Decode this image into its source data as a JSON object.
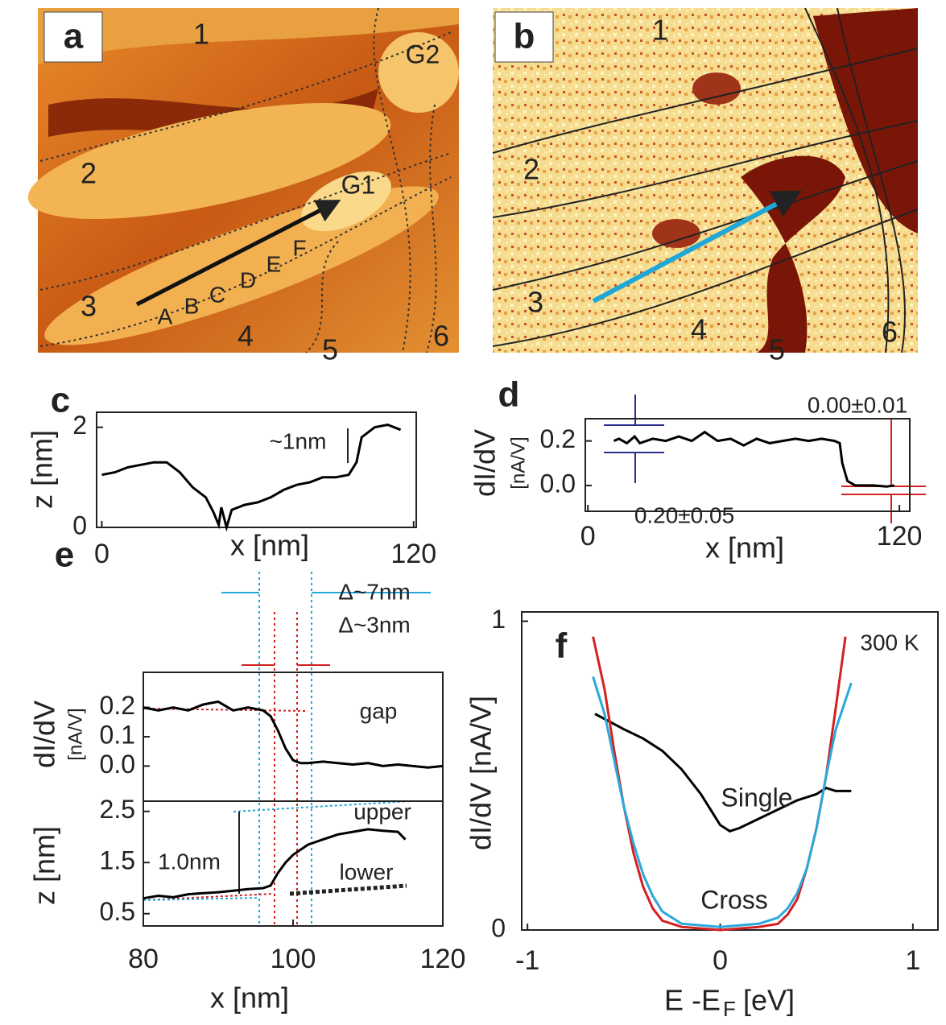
{
  "images": [
    {
      "label": "a",
      "annotations": [
        "1",
        "2",
        "3",
        "4",
        "5",
        "6",
        "G1",
        "G2",
        "A",
        "B",
        "C",
        "D",
        "E",
        "F"
      ]
    },
    {
      "label": "b",
      "annotations": [
        "1",
        "2",
        "3",
        "4",
        "5",
        "6"
      ]
    }
  ],
  "chart_data": [
    {
      "type": "line",
      "panel": "c",
      "xlabel": "x [nm]",
      "ylabel": "z [nm]",
      "annotations": [
        "~1nm"
      ],
      "x": [
        0,
        5,
        10,
        15,
        20,
        25,
        30,
        35,
        40,
        43,
        45,
        46,
        48,
        50,
        55,
        60,
        65,
        70,
        75,
        80,
        85,
        90,
        95,
        98,
        100,
        105,
        110,
        115
      ],
      "series": [
        {
          "color": "#000000",
          "values": [
            1.05,
            1.1,
            1.2,
            1.25,
            1.3,
            1.3,
            1.1,
            0.8,
            0.6,
            0.3,
            0.05,
            0.4,
            0.0,
            0.35,
            0.45,
            0.5,
            0.6,
            0.75,
            0.85,
            0.9,
            1.0,
            1.0,
            1.05,
            1.3,
            1.8,
            2.0,
            2.05,
            1.95
          ]
        }
      ],
      "xlim": [
        -2,
        121
      ],
      "ylim": [
        0,
        2.3
      ],
      "xticks": [
        0,
        120
      ],
      "yticks": [
        0,
        2
      ]
    },
    {
      "type": "line",
      "panel": "d",
      "xlabel": "x [nm]",
      "ylabel": "dI/dV",
      "ylabel_unit": "[nA/V]",
      "annotations": [
        "0.20±0.05",
        "0.00±0.01"
      ],
      "x": [
        10,
        12,
        15,
        18,
        20,
        25,
        30,
        35,
        40,
        45,
        50,
        55,
        60,
        65,
        70,
        75,
        80,
        85,
        90,
        95,
        97,
        98,
        100,
        103,
        110,
        115,
        118
      ],
      "series": [
        {
          "color": "#000000",
          "values": [
            0.2,
            0.21,
            0.19,
            0.22,
            0.19,
            0.21,
            0.2,
            0.22,
            0.2,
            0.24,
            0.2,
            0.21,
            0.18,
            0.21,
            0.19,
            0.2,
            0.21,
            0.2,
            0.21,
            0.2,
            0.19,
            0.1,
            0.02,
            0.0,
            0.0,
            -0.005,
            0.0
          ]
        }
      ],
      "xlim": [
        -1,
        124
      ],
      "ylim": [
        -0.116,
        0.3
      ],
      "xticks": [
        0,
        120
      ],
      "yticks": [
        {
          "value": 0,
          "label": "0.0"
        },
        0.2
      ]
    },
    {
      "type": "line",
      "panel": "e",
      "ylabel": "dI/dV",
      "ylabel_unit": "[nA/V]",
      "annotations": [
        "gap",
        "Δ~7nm",
        "Δ~3nm"
      ],
      "x": [
        80,
        82,
        84,
        86,
        88,
        90,
        92,
        94,
        96,
        97,
        98,
        99,
        100,
        101,
        102,
        104,
        106,
        108,
        110,
        112,
        114,
        116,
        118,
        120
      ],
      "series": [
        {
          "color": "#000000",
          "values": [
            0.2,
            0.19,
            0.2,
            0.19,
            0.21,
            0.22,
            0.19,
            0.2,
            0.19,
            0.17,
            0.12,
            0.06,
            0.02,
            0.01,
            0.01,
            0.015,
            0.01,
            0.005,
            0.01,
            0.0,
            0.005,
            0.0,
            -0.005,
            0.0
          ]
        }
      ],
      "xlim": [
        80,
        120
      ],
      "ylim": [
        -0.12,
        0.32
      ],
      "yticks": [
        {
          "value": 0,
          "label": "0.0"
        },
        0.1,
        0.2
      ]
    },
    {
      "type": "line",
      "xlabel": "x [nm]",
      "ylabel": "z [nm]",
      "annotations": [
        "upper",
        "lower",
        "1.0nm"
      ],
      "x": [
        80,
        82,
        84,
        86,
        88,
        90,
        92,
        94,
        96,
        97,
        98,
        99,
        100,
        101,
        102,
        104,
        106,
        108,
        110,
        112,
        114,
        115
      ],
      "series": [
        {
          "color": "#000000",
          "values": [
            0.8,
            0.85,
            0.82,
            0.88,
            0.9,
            0.92,
            0.95,
            0.98,
            1.0,
            1.05,
            1.3,
            1.5,
            1.65,
            1.75,
            1.85,
            1.95,
            2.05,
            2.1,
            2.15,
            2.12,
            2.1,
            1.95
          ]
        }
      ],
      "xlim": [
        80,
        120
      ],
      "ylim": [
        0.26,
        2.7
      ],
      "xticks": [
        80,
        100,
        120
      ],
      "yticks": [
        0.5,
        1.5,
        2.5
      ]
    },
    {
      "type": "line",
      "panel": "f",
      "xlabel": "E -E",
      "xlabel_sub": "F",
      "xlabel_unit": "[eV]",
      "ylabel": "dI/dV [nA/V]",
      "annotations": [
        "300 K"
      ],
      "series": [
        {
          "name": "Single",
          "color": "#000000",
          "x": [
            -0.65,
            -0.5,
            -0.4,
            -0.3,
            -0.2,
            -0.1,
            0,
            0.05,
            0.1,
            0.2,
            0.3,
            0.4,
            0.5,
            0.55,
            0.6,
            0.68
          ],
          "values": [
            0.7,
            0.65,
            0.62,
            0.58,
            0.52,
            0.44,
            0.34,
            0.32,
            0.33,
            0.36,
            0.39,
            0.42,
            0.44,
            0.46,
            0.45,
            0.45
          ]
        },
        {
          "name": "Cross",
          "color": "#d42020",
          "x": [
            -0.66,
            -0.6,
            -0.55,
            -0.5,
            -0.45,
            -0.4,
            -0.35,
            -0.3,
            -0.2,
            0,
            0.2,
            0.3,
            0.35,
            0.4,
            0.45,
            0.5,
            0.55,
            0.6,
            0.65
          ],
          "values": [
            0.95,
            0.78,
            0.58,
            0.4,
            0.25,
            0.14,
            0.07,
            0.03,
            0.01,
            0.0,
            0.01,
            0.02,
            0.05,
            0.1,
            0.2,
            0.33,
            0.5,
            0.72,
            0.95
          ]
        },
        {
          "color": "#2aa8dc",
          "x": [
            -0.66,
            -0.6,
            -0.55,
            -0.5,
            -0.45,
            -0.4,
            -0.35,
            -0.3,
            -0.2,
            0,
            0.2,
            0.3,
            0.35,
            0.4,
            0.45,
            0.5,
            0.55,
            0.6,
            0.68
          ],
          "values": [
            0.82,
            0.7,
            0.55,
            0.4,
            0.28,
            0.18,
            0.11,
            0.06,
            0.02,
            0.01,
            0.02,
            0.04,
            0.07,
            0.12,
            0.2,
            0.33,
            0.5,
            0.65,
            0.8
          ]
        }
      ],
      "xlim": [
        -1.03,
        1.13
      ],
      "ylim": [
        0,
        1.03
      ],
      "xticks": [
        -1,
        0,
        1
      ],
      "yticks": [
        0,
        1
      ]
    }
  ]
}
